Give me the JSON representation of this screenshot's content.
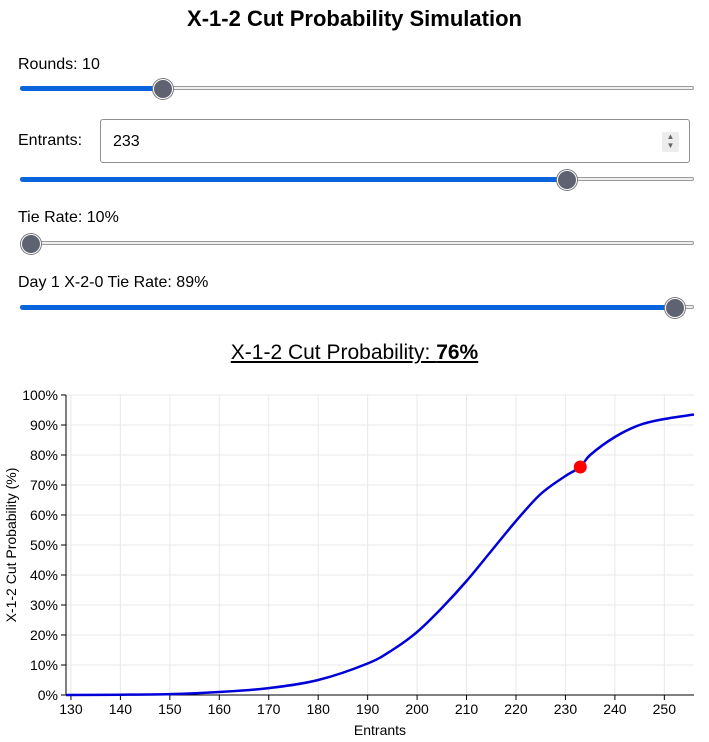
{
  "title": "X-1-2 Cut Probability Simulation",
  "controls": {
    "rounds": {
      "label": "Rounds: 10",
      "value": 10,
      "fraction": 0.21
    },
    "entrants": {
      "label": "Entrants:",
      "value": "233",
      "fraction": 0.81
    },
    "tie_rate": {
      "label": "Tie Rate: 10%",
      "value": 10,
      "fraction": 0.015
    },
    "day1_tie_rate": {
      "label": "Day 1 X-2-0 Tie Rate: 89%",
      "value": 89,
      "fraction": 0.97
    }
  },
  "result": {
    "prefix": "X-1-2 Cut Probability: ",
    "value": "76%"
  },
  "colors": {
    "accent": "#0a64dc",
    "curve": "#0000d8",
    "marker": "#ff0000"
  },
  "chart_data": {
    "type": "line",
    "xlabel": "Entrants",
    "ylabel": "X-1-2 Cut Probability (%)",
    "xlim": [
      129,
      256
    ],
    "ylim": [
      0,
      100
    ],
    "xticks": [
      130,
      140,
      150,
      160,
      170,
      180,
      190,
      200,
      210,
      220,
      230,
      240,
      250
    ],
    "xtick_labels": [
      "130",
      "140",
      "150",
      "160",
      "170",
      "180",
      "190",
      "200",
      "210",
      "220",
      "230",
      "240",
      "250"
    ],
    "yticks": [
      0,
      10,
      20,
      30,
      40,
      50,
      60,
      70,
      80,
      90,
      100
    ],
    "ytick_labels": [
      "0%",
      "10%",
      "20%",
      "30%",
      "40%",
      "50%",
      "60%",
      "70%",
      "80%",
      "90%",
      "100%"
    ],
    "grid": true,
    "series": [
      {
        "x": [
          129,
          140,
          150,
          160,
          170,
          180,
          190,
          195,
          200,
          205,
          210,
          215,
          220,
          225,
          230,
          233,
          235,
          240,
          245,
          250,
          256
        ],
        "y": [
          0,
          0.1,
          0.3,
          1,
          2.3,
          5,
          10.5,
          15,
          21,
          29,
          38,
          48,
          58,
          67,
          73,
          76,
          80,
          86,
          90,
          92,
          93.5
        ]
      }
    ],
    "marker": {
      "x": 233,
      "y": 76
    }
  }
}
